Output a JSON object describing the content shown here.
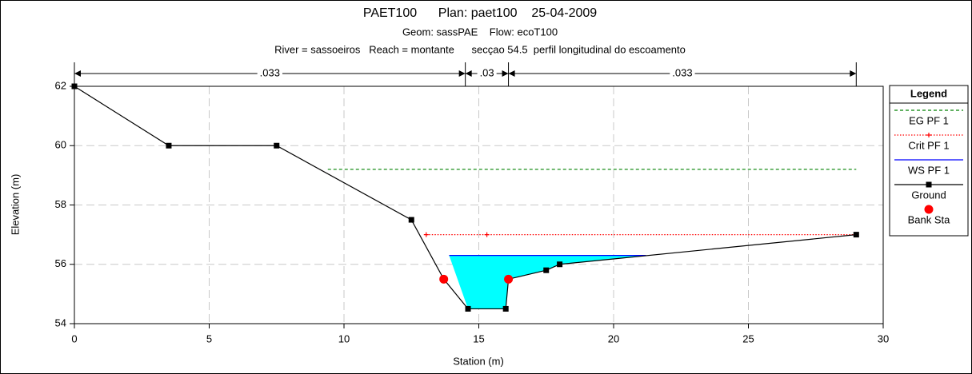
{
  "chart_data": {
    "type": "line",
    "title": "PAET100      Plan: paet100    25-04-2009",
    "subtitle": "Geom: sassPAE    Flow: ecoT100",
    "caption": "River = sassoeiros   Reach = montante      secçao 54.5  perfil longitudinal do escoamento",
    "x_label": "Station (m)",
    "y_label": "Elevation (m)",
    "xlim": [
      0,
      30
    ],
    "ylim": [
      54,
      62
    ],
    "xticks": [
      0,
      5,
      10,
      15,
      20,
      25,
      30
    ],
    "yticks": [
      54,
      56,
      58,
      60,
      62
    ],
    "grid": true,
    "legend_title": "Legend",
    "manning": {
      "stations": [
        0,
        14.5,
        16.1,
        29
      ],
      "values": [
        {
          "value": 0.033,
          "label": ".033"
        },
        {
          "value": 0.03,
          "label": ".03"
        },
        {
          "value": 0.033,
          "label": ".033"
        }
      ]
    },
    "series": [
      {
        "name": "EG PF 1",
        "color": "#008000",
        "style": "dashed",
        "x": [
          9.4,
          29
        ],
        "values": [
          59.2,
          59.2
        ]
      },
      {
        "name": "Crit PF 1",
        "color": "#ff0000",
        "style": "dotted",
        "marker": "plus",
        "x": [
          13.05,
          15.3,
          29
        ],
        "values": [
          57,
          57,
          57
        ]
      },
      {
        "name": "WS PF 1",
        "color": "#0000ff",
        "style": "solid",
        "fill": "#00ffff",
        "x": [
          13.9,
          21.2
        ],
        "values": [
          56.3,
          56.3
        ]
      },
      {
        "name": "Ground",
        "color": "#000000",
        "style": "solid",
        "marker": "square",
        "x": [
          0,
          3.5,
          7.5,
          12.5,
          13.7,
          14.6,
          16,
          16.1,
          17.5,
          18,
          29
        ],
        "values": [
          62,
          60,
          60,
          57.5,
          55.5,
          54.5,
          54.5,
          55.5,
          55.8,
          56,
          57
        ]
      },
      {
        "name": "Bank Sta",
        "color": "#ff0000",
        "style": "none",
        "marker": "circle",
        "x": [
          13.7,
          16.1
        ],
        "values": [
          55.5,
          55.5
        ]
      }
    ]
  }
}
